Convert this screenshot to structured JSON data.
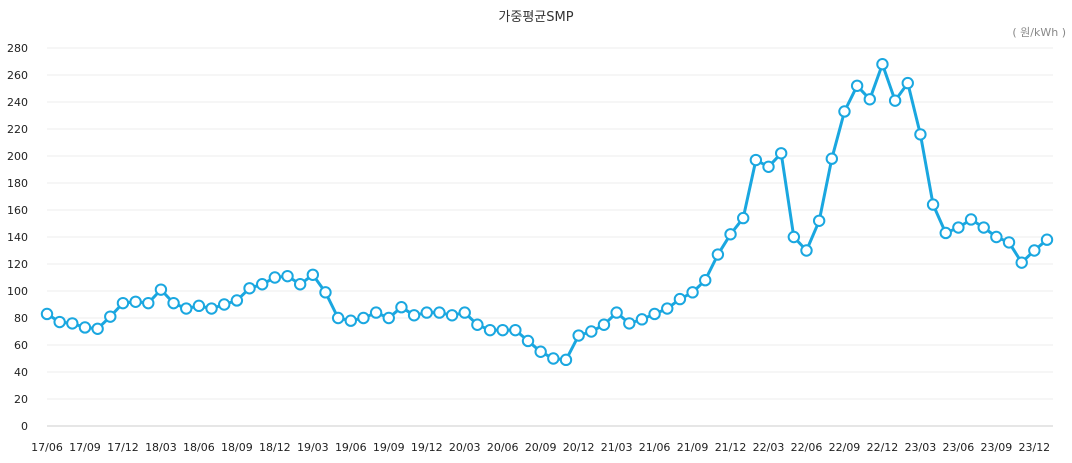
{
  "chart_data": {
    "type": "line",
    "title": "가중평균SMP",
    "unit_label": "( 원/kWh )",
    "xlabel": "",
    "ylabel": "",
    "ylim": [
      0,
      280
    ],
    "yticks": [
      0,
      20,
      40,
      60,
      80,
      100,
      120,
      140,
      160,
      180,
      200,
      220,
      240,
      260,
      280
    ],
    "x_tick_labels": [
      "17/06",
      "17/09",
      "17/12",
      "18/03",
      "18/06",
      "18/09",
      "18/12",
      "19/03",
      "19/06",
      "19/09",
      "19/12",
      "20/03",
      "20/06",
      "20/09",
      "20/12",
      "21/03",
      "21/06",
      "21/09",
      "21/12",
      "22/03",
      "22/06",
      "22/09",
      "22/12",
      "23/03",
      "23/06",
      "23/09",
      "23/12"
    ],
    "categories": [
      "17/06",
      "17/07",
      "17/08",
      "17/09",
      "17/10",
      "17/11",
      "17/12",
      "18/01",
      "18/02",
      "18/03",
      "18/04",
      "18/05",
      "18/06",
      "18/07",
      "18/08",
      "18/09",
      "18/10",
      "18/11",
      "18/12",
      "19/01",
      "19/02",
      "19/03",
      "19/04",
      "19/05",
      "19/06",
      "19/07",
      "19/08",
      "19/09",
      "19/10",
      "19/11",
      "19/12",
      "20/01",
      "20/02",
      "20/03",
      "20/04",
      "20/05",
      "20/06",
      "20/07",
      "20/08",
      "20/09",
      "20/10",
      "20/11",
      "20/12",
      "21/01",
      "21/02",
      "21/03",
      "21/04",
      "21/05",
      "21/06",
      "21/07",
      "21/08",
      "21/09",
      "21/10",
      "21/11",
      "21/12",
      "22/01",
      "22/02",
      "22/03",
      "22/04",
      "22/05",
      "22/06",
      "22/07",
      "22/08",
      "22/09",
      "22/10",
      "22/11",
      "22/12",
      "23/01",
      "23/02",
      "23/03",
      "23/04",
      "23/05",
      "23/06",
      "23/07",
      "23/08",
      "23/09",
      "23/10",
      "23/11",
      "23/12",
      "24/01"
    ],
    "series": [
      {
        "name": "가중평균SMP",
        "color": "#1aa7e0",
        "values": [
          83,
          77,
          76,
          73,
          72,
          81,
          91,
          92,
          91,
          101,
          91,
          87,
          89,
          87,
          90,
          93,
          102,
          105,
          110,
          111,
          105,
          112,
          99,
          80,
          78,
          80,
          84,
          80,
          88,
          82,
          84,
          84,
          82,
          84,
          75,
          71,
          71,
          71,
          63,
          55,
          50,
          49,
          67,
          70,
          75,
          84,
          76,
          79,
          83,
          87,
          94,
          99,
          108,
          127,
          142,
          154,
          197,
          192,
          202,
          140,
          130,
          152,
          198,
          233,
          252,
          242,
          268,
          241,
          254,
          216,
          164,
          143,
          147,
          153,
          147,
          140,
          136,
          121,
          130,
          138
        ]
      }
    ]
  }
}
